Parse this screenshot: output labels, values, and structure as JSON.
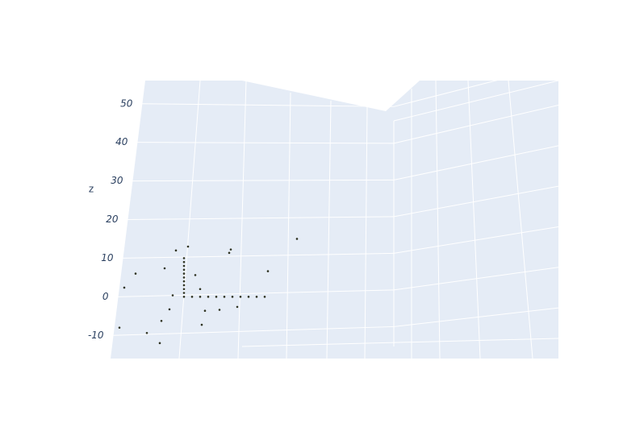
{
  "chart_data": {
    "type": "scatter3d",
    "zaxis_title": "z",
    "zlim": [
      -16,
      56
    ],
    "zticks": [
      -10,
      0,
      10,
      20,
      30,
      40,
      50
    ],
    "grid": true,
    "background": "#e5ecf6",
    "series": [
      {
        "color": "#2f3322",
        "x": [
          0,
          0,
          0,
          0,
          0,
          0,
          0,
          0,
          0,
          0,
          0,
          1,
          2,
          3,
          4,
          5,
          6,
          7,
          8,
          9,
          10,
          -1,
          -2,
          1,
          -1,
          0.5,
          3,
          5,
          7,
          10,
          -6,
          -7,
          -5,
          -3,
          -2,
          2,
          4,
          -1,
          14,
          -8,
          3,
          6
        ],
        "y": [
          0,
          0,
          0,
          0,
          0,
          0,
          0,
          0,
          0,
          0,
          0,
          0,
          0,
          0,
          0,
          0,
          0,
          0,
          0,
          0,
          0,
          0,
          1,
          -1,
          2,
          0,
          1,
          -2,
          1,
          -1,
          0,
          1,
          -1,
          0,
          2,
          0,
          -1,
          1,
          0,
          0,
          2,
          1
        ],
        "z": [
          0,
          1,
          2,
          3,
          4,
          5,
          6,
          7,
          8,
          9,
          10,
          0,
          0,
          0,
          0,
          0,
          0,
          0,
          0,
          0,
          0,
          12,
          8,
          5,
          -2,
          13,
          -3,
          11,
          -2,
          6,
          6,
          3,
          -10,
          -12,
          -5,
          2,
          -4,
          1,
          15,
          -8,
          -6,
          12
        ]
      }
    ]
  }
}
